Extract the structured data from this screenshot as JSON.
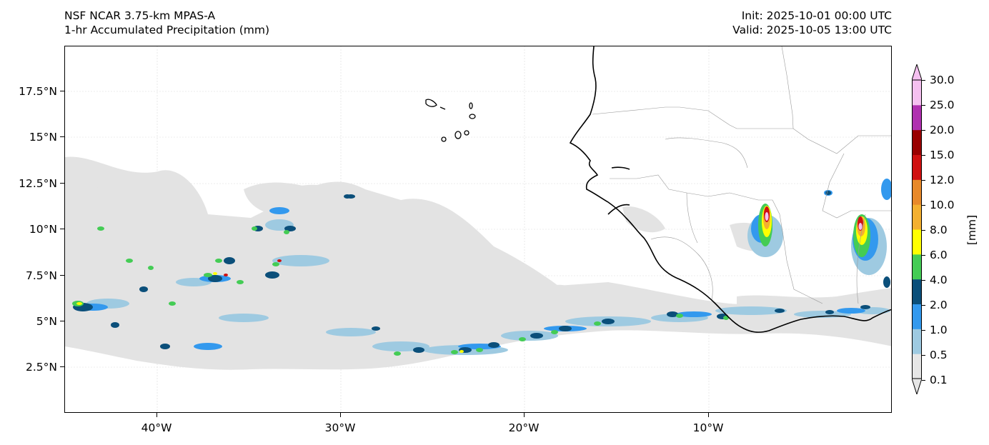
{
  "header": {
    "model": "NSF NCAR 3.75-km MPAS-A",
    "field": "1-hr Accumulated Precipitation (mm)",
    "init": "Init: 2025-10-01 00:00 UTC",
    "valid": "Valid: 2025-10-05 13:00 UTC"
  },
  "axes": {
    "lat_labels": [
      "17.5°N",
      "15°N",
      "12.5°N",
      "10°N",
      "7.5°N",
      "5°N",
      "2.5°N"
    ],
    "lat_values": [
      17.5,
      15,
      12.5,
      10,
      7.5,
      5,
      2.5
    ],
    "lon_labels": [
      "40°W",
      "30°W",
      "20°W",
      "10°W"
    ],
    "lon_values": [
      -40,
      -30,
      -20,
      -10
    ],
    "lon_range": [
      -45,
      0
    ],
    "lat_range": [
      0,
      20
    ]
  },
  "colorbar": {
    "units": "[mm]",
    "levels": [
      "0.1",
      "0.5",
      "1.0",
      "2.0",
      "4.0",
      "6.0",
      "8.0",
      "10.0",
      "12.0",
      "15.0",
      "20.0",
      "25.0",
      "30.0"
    ],
    "colors": [
      "#e6e6e6",
      "#9ecae1",
      "#3399ee",
      "#0b4f7a",
      "#44cc55",
      "#ffff00",
      "#f4b030",
      "#e8892a",
      "#d01010",
      "#990000",
      "#b030b0",
      "#f5c0f0"
    ]
  }
}
